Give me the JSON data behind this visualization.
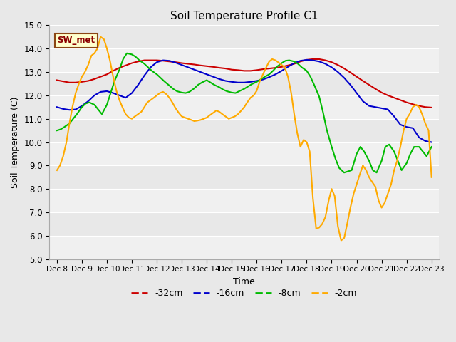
{
  "title": "Soil Temperature Profile C1",
  "xlabel": "Time",
  "ylabel": "Soil Temperature (C)",
  "ylim": [
    5.0,
    15.0
  ],
  "yticks": [
    5.0,
    6.0,
    7.0,
    8.0,
    9.0,
    10.0,
    11.0,
    12.0,
    13.0,
    14.0,
    15.0
  ],
  "bg_color": "#e8e8e8",
  "grid_color": "#ffffff",
  "legend_label": "SW_met",
  "x_labels": [
    "Dec 8",
    "Dec 9",
    "Dec 10",
    "Dec 11",
    "Dec 12",
    "Dec 13",
    "Dec 14",
    "Dec 15",
    "Dec 16",
    "Dec 17",
    "Dec 18",
    "Dec 19",
    "Dec 20",
    "Dec 21",
    "Dec 22",
    "Dec 23"
  ],
  "series": {
    "red_32cm": {
      "color": "#cc0000",
      "label": "-32cm",
      "x": [
        0,
        0.25,
        0.5,
        0.75,
        1.0,
        1.25,
        1.5,
        1.75,
        2.0,
        2.25,
        2.5,
        2.75,
        3.0,
        3.25,
        3.5,
        3.75,
        4.0,
        4.25,
        4.5,
        4.75,
        5.0,
        5.25,
        5.5,
        5.75,
        6.0,
        6.25,
        6.5,
        6.75,
        7.0,
        7.25,
        7.5,
        7.75,
        8.0,
        8.25,
        8.5,
        8.75,
        9.0,
        9.25,
        9.5,
        9.75,
        10.0,
        10.25,
        10.5,
        10.75,
        11.0,
        11.25,
        11.5,
        11.75,
        12.0,
        12.25,
        12.5,
        12.75,
        13.0,
        13.25,
        13.5,
        13.75,
        14.0,
        14.25,
        14.5,
        14.75,
        15.0
      ],
      "y": [
        12.65,
        12.6,
        12.55,
        12.55,
        12.58,
        12.62,
        12.7,
        12.8,
        12.9,
        13.05,
        13.18,
        13.28,
        13.38,
        13.45,
        13.5,
        13.5,
        13.5,
        13.48,
        13.45,
        13.42,
        13.38,
        13.35,
        13.32,
        13.28,
        13.25,
        13.22,
        13.18,
        13.15,
        13.1,
        13.08,
        13.05,
        13.05,
        13.08,
        13.12,
        13.15,
        13.18,
        13.22,
        13.28,
        13.35,
        13.45,
        13.52,
        13.55,
        13.55,
        13.5,
        13.42,
        13.3,
        13.15,
        12.98,
        12.8,
        12.62,
        12.45,
        12.28,
        12.12,
        12.0,
        11.9,
        11.8,
        11.7,
        11.62,
        11.55,
        11.5,
        11.48
      ]
    },
    "blue_16cm": {
      "color": "#0000cc",
      "label": "-16cm",
      "x": [
        0,
        0.25,
        0.5,
        0.75,
        1.0,
        1.25,
        1.5,
        1.75,
        2.0,
        2.25,
        2.5,
        2.75,
        3.0,
        3.25,
        3.5,
        3.75,
        4.0,
        4.25,
        4.5,
        4.75,
        5.0,
        5.25,
        5.5,
        5.75,
        6.0,
        6.25,
        6.5,
        6.75,
        7.0,
        7.25,
        7.5,
        7.75,
        8.0,
        8.25,
        8.5,
        8.75,
        9.0,
        9.25,
        9.5,
        9.75,
        10.0,
        10.25,
        10.5,
        10.75,
        11.0,
        11.25,
        11.5,
        11.75,
        12.0,
        12.25,
        12.5,
        12.75,
        13.0,
        13.25,
        13.5,
        13.75,
        14.0,
        14.25,
        14.5,
        14.75,
        15.0
      ],
      "y": [
        11.5,
        11.42,
        11.38,
        11.4,
        11.55,
        11.75,
        12.0,
        12.15,
        12.18,
        12.1,
        12.0,
        11.9,
        12.1,
        12.45,
        12.85,
        13.2,
        13.42,
        13.5,
        13.48,
        13.4,
        13.3,
        13.2,
        13.1,
        13.0,
        12.9,
        12.8,
        12.7,
        12.62,
        12.58,
        12.55,
        12.55,
        12.58,
        12.62,
        12.68,
        12.78,
        12.9,
        13.05,
        13.22,
        13.38,
        13.48,
        13.52,
        13.5,
        13.45,
        13.35,
        13.2,
        13.0,
        12.75,
        12.45,
        12.1,
        11.75,
        11.55,
        11.5,
        11.45,
        11.4,
        11.1,
        10.75,
        10.65,
        10.6,
        10.2,
        10.05,
        10.0
      ]
    },
    "green_8cm": {
      "color": "#00bb00",
      "label": "-8cm",
      "x": [
        0,
        0.15,
        0.3,
        0.5,
        0.65,
        0.8,
        1.0,
        1.15,
        1.3,
        1.5,
        1.65,
        1.8,
        2.0,
        2.15,
        2.3,
        2.5,
        2.65,
        2.8,
        3.0,
        3.15,
        3.3,
        3.5,
        3.65,
        3.8,
        4.0,
        4.15,
        4.3,
        4.5,
        4.65,
        4.8,
        5.0,
        5.15,
        5.3,
        5.5,
        5.65,
        5.8,
        6.0,
        6.15,
        6.3,
        6.5,
        6.65,
        6.8,
        7.0,
        7.15,
        7.3,
        7.5,
        7.65,
        7.8,
        8.0,
        8.15,
        8.3,
        8.5,
        8.65,
        8.8,
        9.0,
        9.15,
        9.3,
        9.5,
        9.65,
        9.8,
        10.0,
        10.15,
        10.3,
        10.5,
        10.65,
        10.8,
        11.0,
        11.15,
        11.3,
        11.5,
        11.65,
        11.8,
        12.0,
        12.15,
        12.3,
        12.5,
        12.65,
        12.8,
        13.0,
        13.15,
        13.3,
        13.5,
        13.65,
        13.8,
        14.0,
        14.15,
        14.3,
        14.5,
        14.65,
        14.8,
        15.0
      ],
      "y": [
        10.5,
        10.55,
        10.65,
        10.8,
        11.0,
        11.2,
        11.5,
        11.65,
        11.7,
        11.6,
        11.4,
        11.2,
        11.6,
        12.1,
        12.6,
        13.1,
        13.55,
        13.8,
        13.75,
        13.65,
        13.5,
        13.35,
        13.2,
        13.05,
        12.9,
        12.75,
        12.6,
        12.42,
        12.28,
        12.18,
        12.12,
        12.1,
        12.15,
        12.3,
        12.45,
        12.55,
        12.65,
        12.55,
        12.45,
        12.35,
        12.25,
        12.18,
        12.12,
        12.1,
        12.18,
        12.28,
        12.38,
        12.48,
        12.58,
        12.68,
        12.78,
        12.9,
        13.05,
        13.22,
        13.38,
        13.48,
        13.5,
        13.45,
        13.35,
        13.2,
        13.05,
        12.8,
        12.45,
        11.95,
        11.3,
        10.55,
        9.8,
        9.3,
        8.9,
        8.7,
        8.75,
        8.8,
        9.5,
        9.8,
        9.6,
        9.2,
        8.8,
        8.7,
        9.2,
        9.8,
        9.9,
        9.6,
        9.2,
        8.8,
        9.1,
        9.5,
        9.8,
        9.8,
        9.6,
        9.4,
        9.8
      ]
    },
    "orange_2cm": {
      "color": "#ffaa00",
      "label": "-2cm",
      "x": [
        0,
        0.12,
        0.25,
        0.38,
        0.5,
        0.62,
        0.75,
        0.88,
        1.0,
        1.12,
        1.25,
        1.38,
        1.5,
        1.62,
        1.75,
        1.88,
        2.0,
        2.12,
        2.25,
        2.38,
        2.5,
        2.62,
        2.75,
        2.88,
        3.0,
        3.12,
        3.25,
        3.38,
        3.5,
        3.62,
        3.75,
        3.88,
        4.0,
        4.12,
        4.25,
        4.38,
        4.5,
        4.62,
        4.75,
        4.88,
        5.0,
        5.12,
        5.25,
        5.38,
        5.5,
        5.62,
        5.75,
        5.88,
        6.0,
        6.12,
        6.25,
        6.38,
        6.5,
        6.62,
        6.75,
        6.88,
        7.0,
        7.12,
        7.25,
        7.38,
        7.5,
        7.62,
        7.75,
        7.88,
        8.0,
        8.12,
        8.25,
        8.38,
        8.5,
        8.62,
        8.75,
        8.88,
        9.0,
        9.12,
        9.25,
        9.38,
        9.5,
        9.62,
        9.75,
        9.88,
        10.0,
        10.12,
        10.25,
        10.38,
        10.5,
        10.62,
        10.75,
        10.88,
        11.0,
        11.12,
        11.25,
        11.38,
        11.5,
        11.62,
        11.75,
        11.88,
        12.0,
        12.12,
        12.25,
        12.38,
        12.5,
        12.62,
        12.75,
        12.88,
        13.0,
        13.12,
        13.25,
        13.38,
        13.5,
        13.62,
        13.75,
        13.88,
        14.0,
        14.12,
        14.25,
        14.38,
        14.5,
        14.62,
        14.75,
        14.88,
        15.0
      ],
      "y": [
        8.8,
        9.0,
        9.4,
        10.0,
        10.8,
        11.5,
        12.1,
        12.5,
        12.8,
        13.0,
        13.3,
        13.7,
        13.8,
        14.0,
        14.5,
        14.4,
        14.0,
        13.5,
        12.8,
        12.2,
        11.8,
        11.5,
        11.2,
        11.05,
        11.0,
        11.1,
        11.2,
        11.3,
        11.5,
        11.7,
        11.8,
        11.9,
        12.0,
        12.1,
        12.15,
        12.05,
        11.9,
        11.7,
        11.45,
        11.25,
        11.1,
        11.05,
        11.0,
        10.95,
        10.9,
        10.92,
        10.95,
        11.0,
        11.05,
        11.15,
        11.25,
        11.35,
        11.3,
        11.2,
        11.1,
        11.0,
        11.05,
        11.1,
        11.2,
        11.35,
        11.5,
        11.7,
        11.9,
        12.0,
        12.2,
        12.6,
        12.9,
        13.2,
        13.45,
        13.55,
        13.5,
        13.4,
        13.3,
        13.2,
        12.8,
        12.1,
        11.2,
        10.4,
        9.8,
        10.1,
        10.0,
        9.6,
        7.6,
        6.3,
        6.35,
        6.5,
        6.8,
        7.5,
        8.0,
        7.7,
        6.4,
        5.8,
        5.9,
        6.5,
        7.2,
        7.8,
        8.2,
        8.6,
        9.0,
        8.8,
        8.5,
        8.3,
        8.1,
        7.5,
        7.2,
        7.4,
        7.8,
        8.2,
        8.8,
        9.2,
        9.8,
        10.5,
        11.0,
        11.2,
        11.5,
        11.6,
        11.5,
        11.2,
        10.8,
        10.5,
        8.5
      ]
    }
  }
}
